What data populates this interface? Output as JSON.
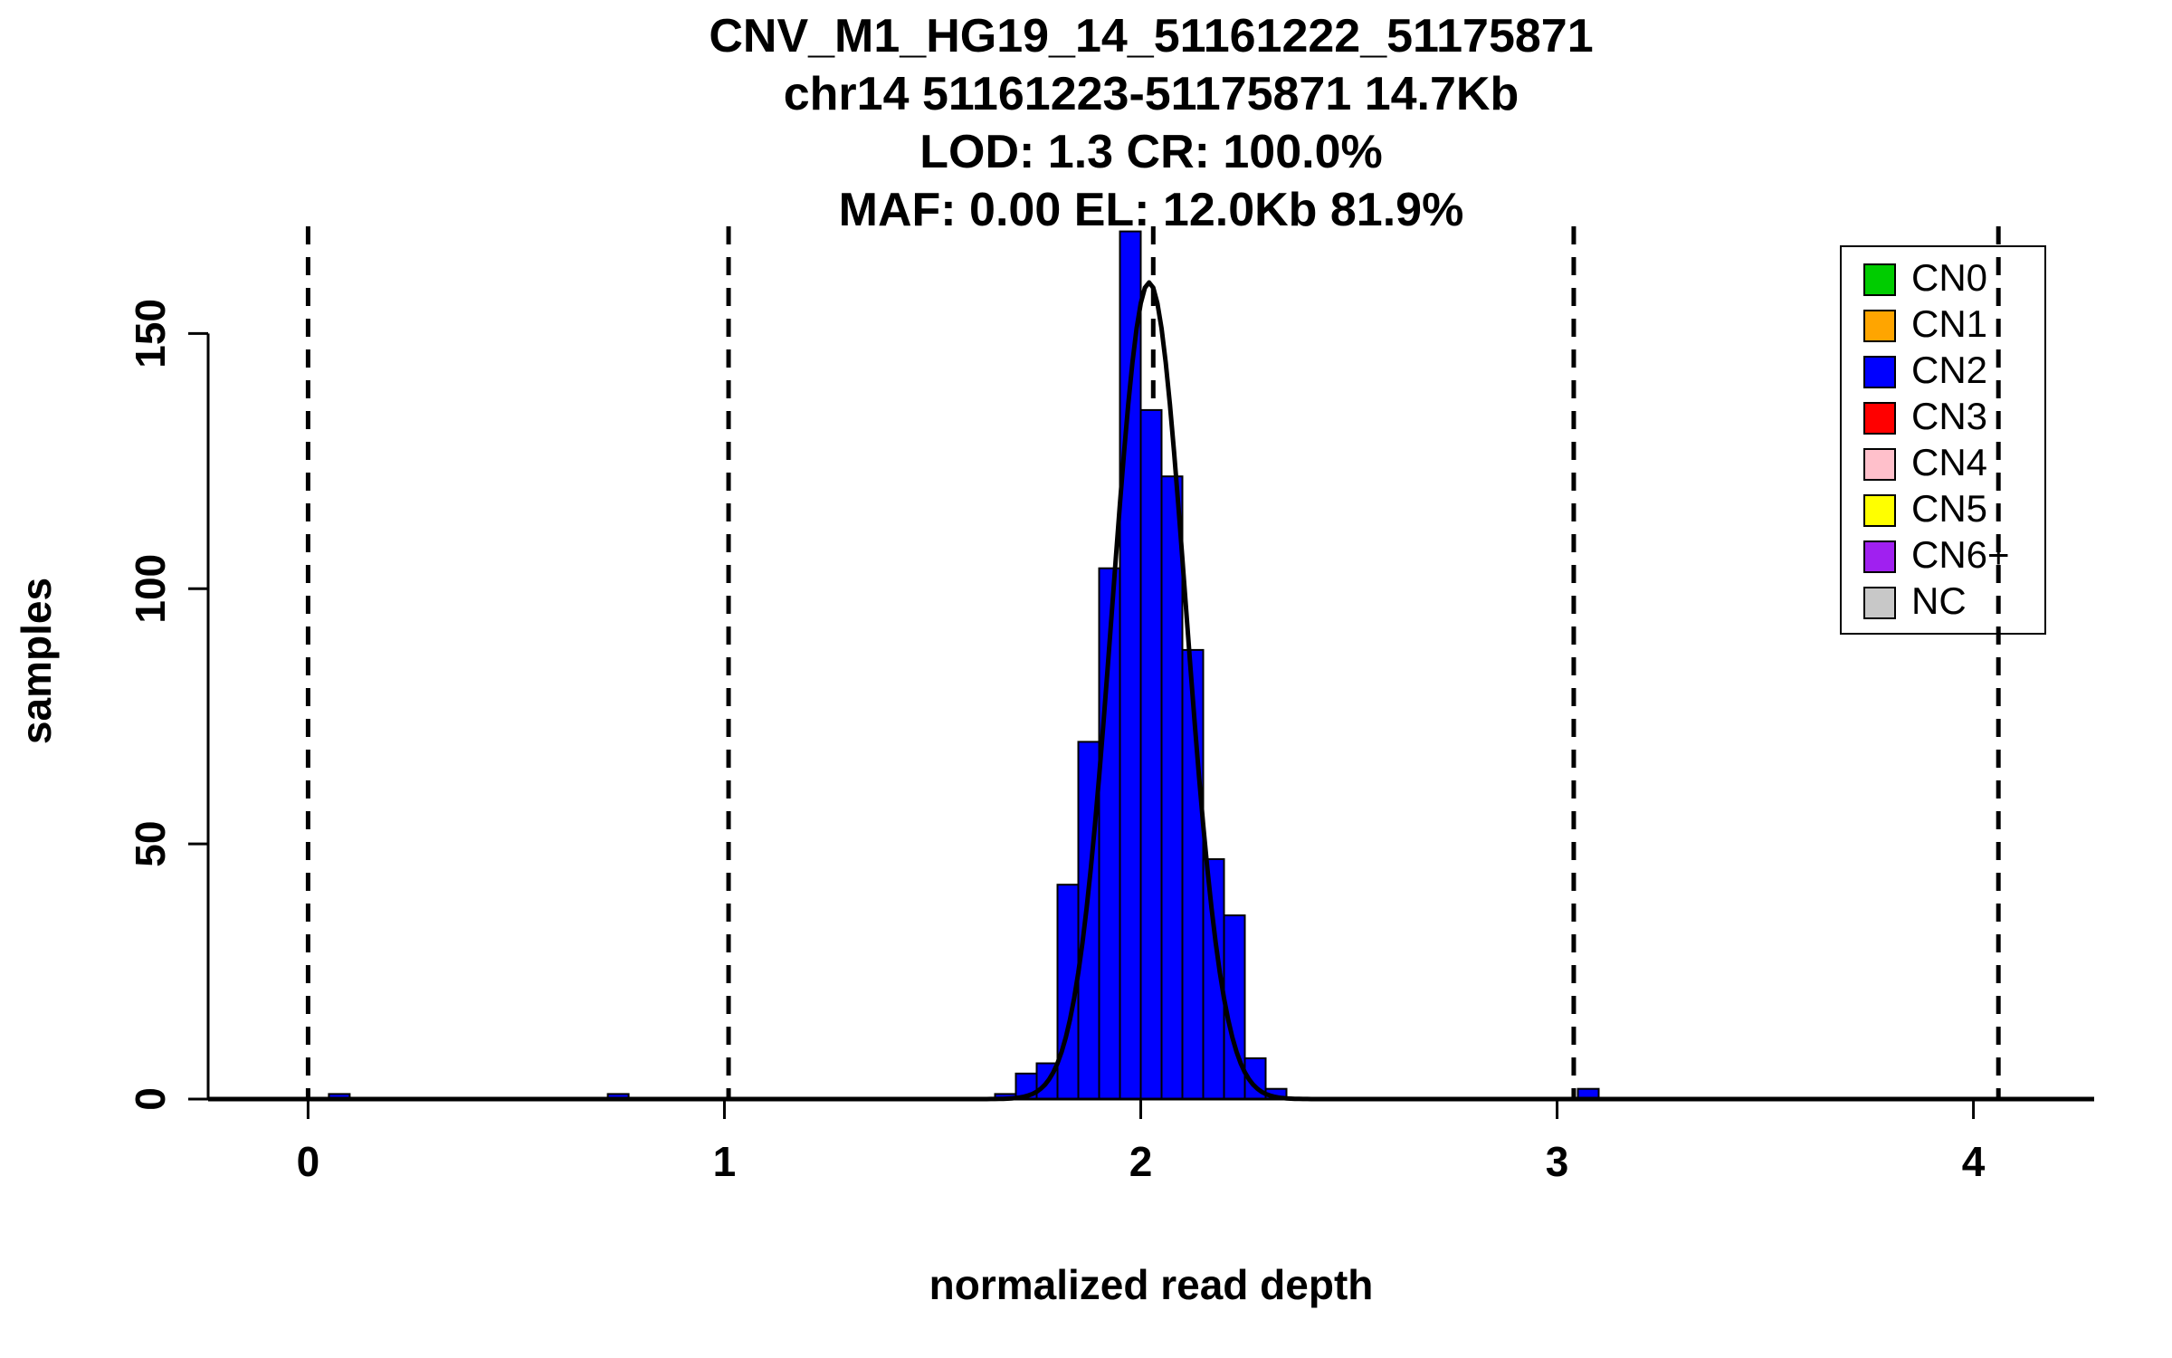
{
  "chart_data": {
    "type": "bar",
    "variant": "histogram",
    "title_lines": [
      "CNV_M1_HG19_14_51161222_51175871",
      "chr14 51161223-51175871 14.7Kb",
      "LOD: 1.3 CR: 100.0%",
      "MAF: 0.00 EL: 12.0Kb 81.9%"
    ],
    "xlabel": "normalized read depth",
    "ylabel": "samples",
    "xlim": [
      -0.24,
      4.29
    ],
    "ylim": [
      0,
      171
    ],
    "x_ticks": [
      0,
      1,
      2,
      3,
      4
    ],
    "y_ticks": [
      0,
      50,
      100,
      150
    ],
    "grid": false,
    "legend_position": "top-right",
    "bin_width": 0.05,
    "bar_color": "#0000FF",
    "bar_stroke": "#000000",
    "bars": [
      {
        "x": 0.05,
        "count": 1
      },
      {
        "x": 0.72,
        "count": 1
      },
      {
        "x": 1.65,
        "count": 1
      },
      {
        "x": 1.7,
        "count": 5
      },
      {
        "x": 1.75,
        "count": 7
      },
      {
        "x": 1.8,
        "count": 42
      },
      {
        "x": 1.85,
        "count": 70
      },
      {
        "x": 1.9,
        "count": 104
      },
      {
        "x": 1.95,
        "count": 170
      },
      {
        "x": 2.0,
        "count": 135
      },
      {
        "x": 2.05,
        "count": 122
      },
      {
        "x": 2.1,
        "count": 88
      },
      {
        "x": 2.15,
        "count": 47
      },
      {
        "x": 2.2,
        "count": 36
      },
      {
        "x": 2.25,
        "count": 8
      },
      {
        "x": 2.3,
        "count": 2
      },
      {
        "x": 3.05,
        "count": 2
      }
    ],
    "curve": {
      "shape": "gaussian",
      "mean": 2.02,
      "sd": 0.088,
      "peak": 160,
      "color": "#000000"
    },
    "guide_lines": {
      "style": "dashed",
      "color": "#000000",
      "x_values": [
        0.0,
        1.01,
        2.03,
        3.04,
        4.06
      ]
    },
    "legend": {
      "entries": [
        {
          "label": "CN0",
          "color": "#00CC00"
        },
        {
          "label": "CN1",
          "color": "#FFA500"
        },
        {
          "label": "CN2",
          "color": "#0000FF"
        },
        {
          "label": "CN3",
          "color": "#FF0000"
        },
        {
          "label": "CN4",
          "color": "#FFC0CB"
        },
        {
          "label": "CN5",
          "color": "#FFFF00"
        },
        {
          "label": "CN6+",
          "color": "#A020F0"
        },
        {
          "label": "NC",
          "color": "#C8C8C8"
        }
      ]
    }
  }
}
